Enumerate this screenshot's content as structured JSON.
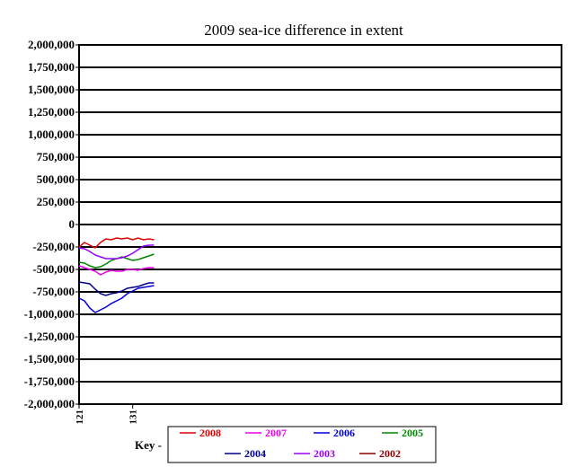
{
  "chart_data": {
    "type": "line",
    "title": "2009 sea-ice difference in extent",
    "xlabel": "",
    "ylabel": "",
    "x_ticks": [
      "121",
      "131"
    ],
    "xlim": [
      121,
      211
    ],
    "ylim": [
      -2000000,
      2000000
    ],
    "y_ticks": [
      {
        "value": 2000000,
        "label": "2,000,000"
      },
      {
        "value": 1750000,
        "label": "1,750,000"
      },
      {
        "value": 1500000,
        "label": "1,500,000"
      },
      {
        "value": 1250000,
        "label": "1,250,000"
      },
      {
        "value": 1000000,
        "label": "1,000,000"
      },
      {
        "value": 750000,
        "label": "750,000"
      },
      {
        "value": 500000,
        "label": "500,000"
      },
      {
        "value": 250000,
        "label": "250,000"
      },
      {
        "value": 0,
        "label": "0"
      },
      {
        "value": -250000,
        "label": "-250,000"
      },
      {
        "value": -500000,
        "label": "-500,000"
      },
      {
        "value": -750000,
        "label": "-750,000"
      },
      {
        "value": -1000000,
        "label": "-1,000,000"
      },
      {
        "value": -1250000,
        "label": "-1,250,000"
      },
      {
        "value": -1500000,
        "label": "-1,500,000"
      },
      {
        "value": -1750000,
        "label": "-1,750,000"
      },
      {
        "value": -2000000,
        "label": "-2,000,000"
      }
    ],
    "grid": "horizontal",
    "legend_placement": "bottom",
    "key_label": "Key -",
    "series": [
      {
        "name": "2008",
        "color": "#dd0000",
        "x": [
          121,
          122,
          123,
          124,
          125,
          126,
          127,
          128,
          129,
          130,
          131,
          132,
          133,
          134,
          135
        ],
        "y": [
          -250000,
          -200000,
          -230000,
          -260000,
          -200000,
          -160000,
          -170000,
          -150000,
          -160000,
          -150000,
          -170000,
          -150000,
          -170000,
          -160000,
          -170000
        ]
      },
      {
        "name": "2007",
        "color": "#ee00ee",
        "x": [
          121,
          122,
          123,
          124,
          125,
          126,
          127,
          128,
          129,
          130,
          131,
          132,
          133,
          134,
          135
        ],
        "y": [
          -460000,
          -480000,
          -500000,
          -520000,
          -560000,
          -530000,
          -510000,
          -520000,
          -520000,
          -500000,
          -500000,
          -510000,
          -490000,
          -480000,
          -480000
        ]
      },
      {
        "name": "2006",
        "color": "#0000dd",
        "x": [
          121,
          122,
          123,
          124,
          125,
          126,
          127,
          128,
          129,
          130,
          131,
          132,
          133,
          134,
          135
        ],
        "y": [
          -820000,
          -850000,
          -930000,
          -980000,
          -950000,
          -920000,
          -880000,
          -850000,
          -820000,
          -770000,
          -740000,
          -710000,
          -700000,
          -690000,
          -680000
        ]
      },
      {
        "name": "2005",
        "color": "#008800",
        "x": [
          121,
          122,
          123,
          124,
          125,
          126,
          127,
          128,
          129,
          130,
          131,
          132,
          133,
          134,
          135
        ],
        "y": [
          -420000,
          -430000,
          -460000,
          -480000,
          -470000,
          -440000,
          -400000,
          -380000,
          -360000,
          -380000,
          -400000,
          -390000,
          -370000,
          -350000,
          -330000
        ]
      },
      {
        "name": "2004",
        "color": "#000088",
        "x": [
          121,
          122,
          123,
          124,
          125,
          126,
          127,
          128,
          129,
          130,
          131,
          132,
          133,
          134,
          135
        ],
        "y": [
          -640000,
          -650000,
          -660000,
          -720000,
          -770000,
          -790000,
          -770000,
          -760000,
          -740000,
          -710000,
          -700000,
          -690000,
          -670000,
          -650000,
          -650000
        ]
      },
      {
        "name": "2003",
        "color": "#9900ff",
        "x": [
          121,
          122,
          123,
          124,
          125,
          126,
          127,
          128,
          129,
          130,
          131,
          132,
          133,
          134,
          135
        ],
        "y": [
          -260000,
          -270000,
          -300000,
          -340000,
          -360000,
          -380000,
          -380000,
          -380000,
          -370000,
          -350000,
          -320000,
          -280000,
          -240000,
          -230000,
          -230000
        ]
      },
      {
        "name": "2002",
        "color": "#880000",
        "x": [],
        "y": []
      }
    ],
    "legend_rows": [
      [
        "2008",
        "2007",
        "2006",
        "2005"
      ],
      [
        "2004",
        "2003",
        "2002"
      ]
    ]
  }
}
